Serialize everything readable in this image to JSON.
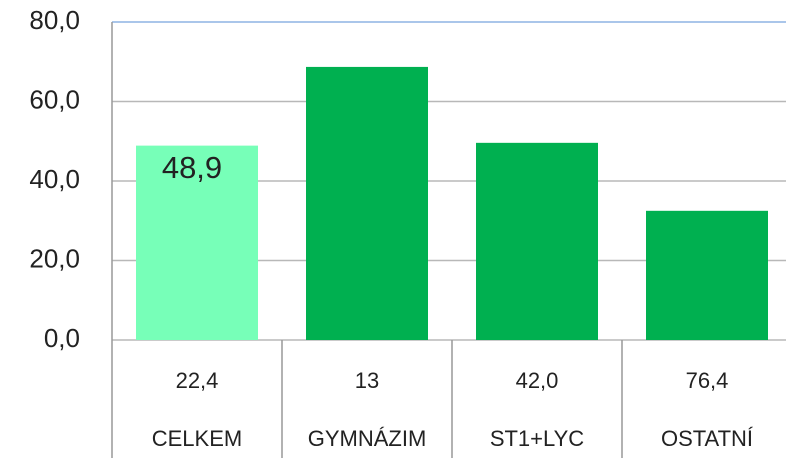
{
  "chart_data": {
    "type": "bar",
    "categories": [
      "CELKEM",
      "GYMNÁZIM",
      "ST1+LYC",
      "OSTATNÍ"
    ],
    "values": [
      48.9,
      68.7,
      49.6,
      32.5
    ],
    "value_labels": [
      "48,9",
      null,
      null,
      null
    ],
    "colors": [
      "#77ffb8",
      "#00b050",
      "#00b050",
      "#00b050"
    ],
    "table_row": [
      "22,4",
      "13",
      "42,0",
      "76,4"
    ],
    "ylim": [
      0,
      80
    ],
    "yticks": [
      {
        "value": 0,
        "label": "0,0"
      },
      {
        "value": 20,
        "label": "20,0"
      },
      {
        "value": 40,
        "label": "40,0"
      },
      {
        "value": 60,
        "label": "60,0"
      },
      {
        "value": 80,
        "label": "80,0"
      }
    ],
    "grid": true
  }
}
